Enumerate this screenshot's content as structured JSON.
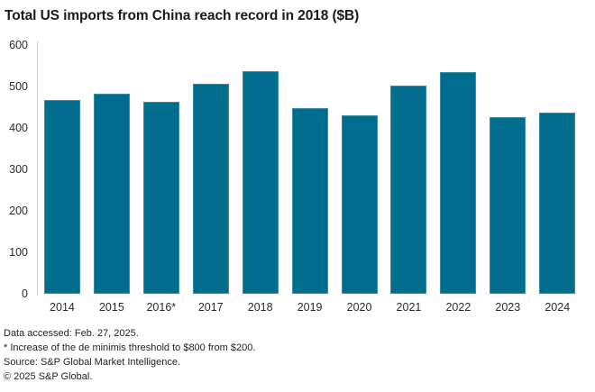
{
  "chart_data": {
    "type": "bar",
    "title": "Total US imports from China reach record in 2018 ($B)",
    "categories": [
      "2014",
      "2015",
      "2016*",
      "2017",
      "2018",
      "2019",
      "2020",
      "2021",
      "2022",
      "2023",
      "2024"
    ],
    "values": [
      467,
      483,
      462,
      506,
      538,
      448,
      430,
      503,
      535,
      426,
      438
    ],
    "xlabel": "",
    "ylabel": "",
    "ylim": [
      0,
      600
    ],
    "yticks": [
      0,
      100,
      200,
      300,
      400,
      500,
      600
    ],
    "grid": false,
    "legend": false,
    "bar_color": "#006d8e"
  },
  "colors": {
    "bar": "#006d8e",
    "axis_line": "#c9cdd0",
    "title_text": "#1a1a1a",
    "tick_text": "#2a2a2a",
    "footer_text": "#222222",
    "background": "#ffffff"
  },
  "footer": {
    "data_accessed": "Data accessed: Feb. 27, 2025.",
    "footnote": "* Increase of the de minimis threshold to $800 from $200.",
    "source": "Source: S&P Global Market Intelligence.",
    "copyright": "© 2025 S&P Global."
  }
}
